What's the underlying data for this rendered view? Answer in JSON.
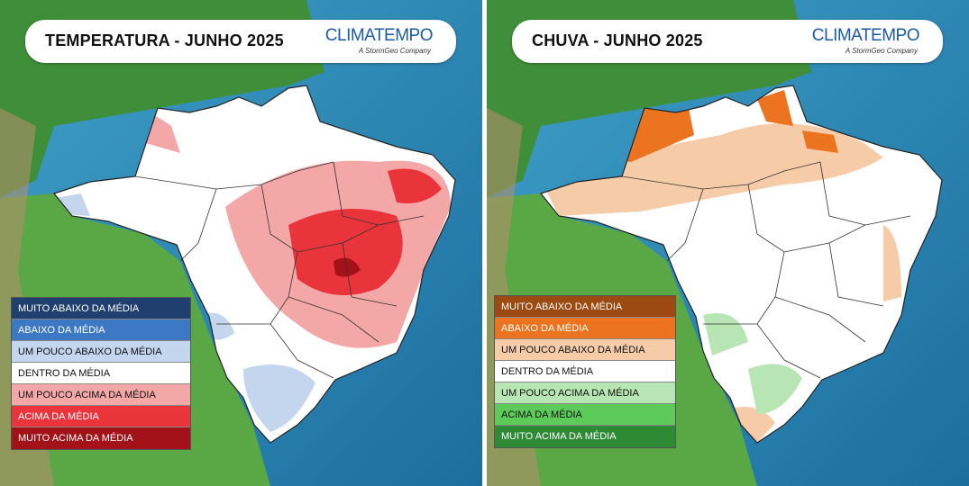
{
  "panels": [
    {
      "title": "TEMPERATURA - JUNHO 2025",
      "brand": "CLIMATEMPO",
      "brand_sub": "A StormGeo Company",
      "legend": [
        {
          "label": "MUITO ABAIXO DA MÉDIA",
          "color": "#1f3f6e"
        },
        {
          "label": "ABAIXO DA MÉDIA",
          "color": "#3d78c4"
        },
        {
          "label": "UM POUCO ABAIXO DA MÉDIA",
          "color": "#c3d6ee"
        },
        {
          "label": "DENTRO DA MÉDIA",
          "color": "#ffffff"
        },
        {
          "label": "UM POUCO ACIMA DA MÉDIA",
          "color": "#f4a7a7"
        },
        {
          "label": "ACIMA DA MÉDIA",
          "color": "#e8343a"
        },
        {
          "label": "MUITO ACIMA DA MÉDIA",
          "color": "#a31218"
        }
      ]
    },
    {
      "title": "CHUVA - JUNHO 2025",
      "brand": "CLIMATEMPO",
      "brand_sub": "A StormGeo Company",
      "legend": [
        {
          "label": "MUITO ABAIXO DA MÉDIA",
          "color": "#9c4a12"
        },
        {
          "label": "ABAIXO DA MÉDIA",
          "color": "#ec7420"
        },
        {
          "label": "UM POUCO ABAIXO DA MÉDIA",
          "color": "#f6cba8"
        },
        {
          "label": "DENTRO DA MÉDIA",
          "color": "#ffffff"
        },
        {
          "label": "UM POUCO ACIMA DA MÉDIA",
          "color": "#b8e5b4"
        },
        {
          "label": "ACIMA DA MÉDIA",
          "color": "#5ccb5a"
        },
        {
          "label": "MUITO ACIMA DA MÉDIA",
          "color": "#2f8a35"
        }
      ]
    }
  ]
}
